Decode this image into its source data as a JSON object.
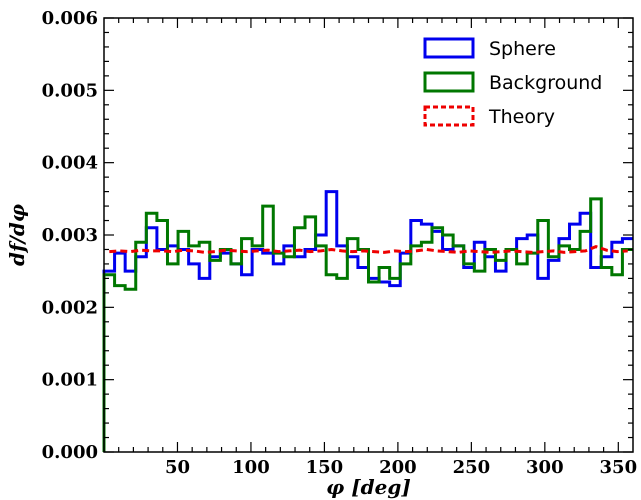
{
  "chart_data": {
    "type": "line",
    "xlabel": "φ [deg]",
    "ylabel": "df/dφ",
    "xlim": [
      0,
      360
    ],
    "ylim": [
      0,
      0.006
    ],
    "x_ticks": [
      50,
      100,
      150,
      200,
      250,
      300,
      350
    ],
    "x_tick_labels": [
      "50",
      "100",
      "150",
      "200",
      "250",
      "300",
      "350"
    ],
    "y_ticks": [
      0,
      0.001,
      0.002,
      0.003,
      0.004,
      0.005,
      0.006
    ],
    "y_tick_labels": [
      "0.000",
      "0.001",
      "0.002",
      "0.003",
      "0.004",
      "0.005",
      "0.006"
    ],
    "grid": false,
    "legend_position": "top-right",
    "bin_edges": [
      0,
      7.2,
      14.4,
      21.6,
      28.8,
      36,
      43.2,
      50.4,
      57.6,
      64.8,
      72,
      79.2,
      86.4,
      93.6,
      100.8,
      108,
      115.2,
      122.4,
      129.6,
      136.8,
      144,
      151.2,
      158.4,
      165.6,
      172.8,
      180,
      187.2,
      194.4,
      201.6,
      208.8,
      216,
      223.2,
      230.4,
      237.6,
      244.8,
      252,
      259.2,
      266.4,
      273.6,
      280.8,
      288,
      295.2,
      302.4,
      309.6,
      316.8,
      324,
      331.2,
      338.4,
      345.6,
      352.8,
      360
    ],
    "series": [
      {
        "name": "Sphere",
        "style": "step",
        "color": "#0000ee",
        "values": [
          0.0025,
          0.00275,
          0.0025,
          0.0027,
          0.0031,
          0.0028,
          0.00285,
          0.0028,
          0.0026,
          0.0024,
          0.0027,
          0.00275,
          0.0026,
          0.00245,
          0.0028,
          0.00275,
          0.0026,
          0.00285,
          0.0027,
          0.0028,
          0.003,
          0.0036,
          0.00285,
          0.0027,
          0.00255,
          0.0024,
          0.00235,
          0.0023,
          0.00275,
          0.0032,
          0.00315,
          0.00305,
          0.0028,
          0.00285,
          0.00255,
          0.0029,
          0.0027,
          0.0025,
          0.0028,
          0.00295,
          0.003,
          0.0024,
          0.00265,
          0.00295,
          0.00315,
          0.0033,
          0.00255,
          0.0027,
          0.0029,
          0.00295
        ]
      },
      {
        "name": "Background",
        "style": "step",
        "color": "#007700",
        "values": [
          0.00245,
          0.0023,
          0.00225,
          0.0029,
          0.0033,
          0.0032,
          0.0026,
          0.00305,
          0.00285,
          0.0029,
          0.00265,
          0.0028,
          0.0026,
          0.00295,
          0.00285,
          0.0034,
          0.00275,
          0.0027,
          0.0031,
          0.00325,
          0.00285,
          0.00245,
          0.0024,
          0.00295,
          0.0028,
          0.00235,
          0.00255,
          0.0024,
          0.0026,
          0.00285,
          0.0029,
          0.0031,
          0.003,
          0.00285,
          0.0026,
          0.0025,
          0.0028,
          0.00265,
          0.0028,
          0.0026,
          0.00275,
          0.0032,
          0.0027,
          0.00285,
          0.0028,
          0.00305,
          0.0035,
          0.00255,
          0.00245,
          0.0028
        ]
      },
      {
        "name": "Theory",
        "style": "dashed",
        "color": "#ee0000",
        "values": [
          0.00277,
          0.00278,
          0.00277,
          0.00279,
          0.00278,
          0.00278,
          0.00277,
          0.00279,
          0.00278,
          0.00276,
          0.00277,
          0.00279,
          0.00278,
          0.00277,
          0.00278,
          0.00279,
          0.00277,
          0.00278,
          0.00279,
          0.00277,
          0.00278,
          0.0028,
          0.00278,
          0.00277,
          0.00278,
          0.00277,
          0.00276,
          0.00278,
          0.00277,
          0.00278,
          0.0028,
          0.00278,
          0.00277,
          0.00276,
          0.00278,
          0.00277,
          0.00276,
          0.00277,
          0.00278,
          0.00277,
          0.00276,
          0.00277,
          0.00278,
          0.00276,
          0.00277,
          0.00278,
          0.00284,
          0.00279,
          0.00277,
          0.00278
        ]
      }
    ]
  }
}
